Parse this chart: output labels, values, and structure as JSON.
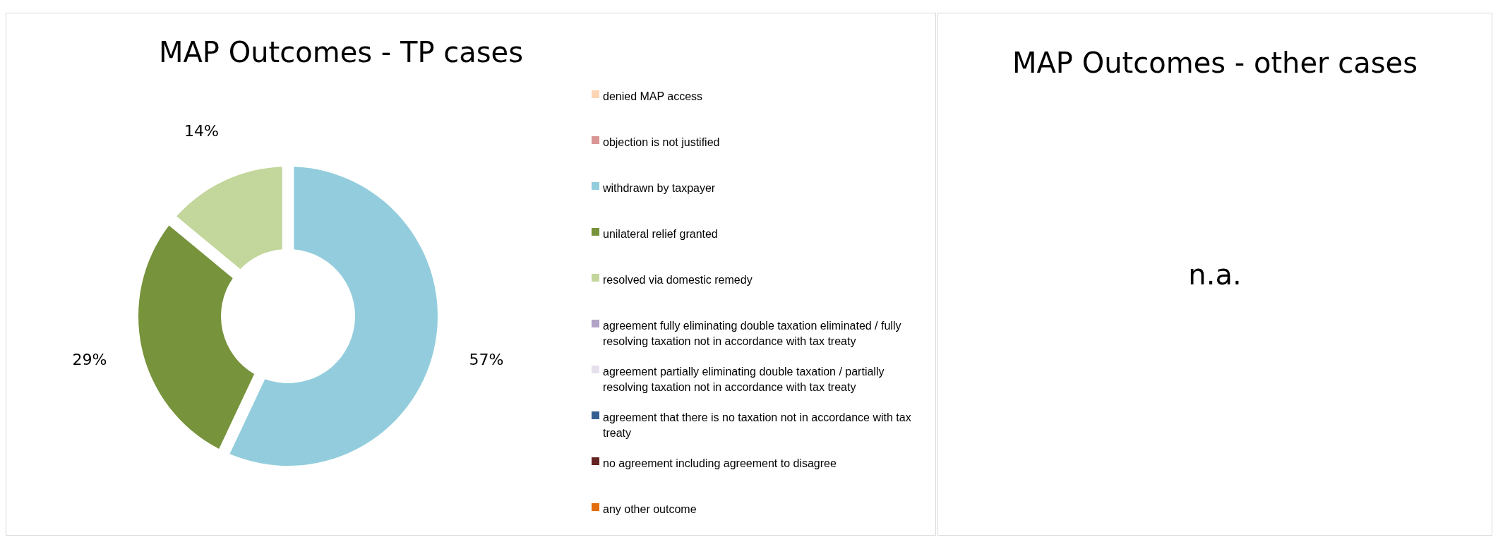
{
  "chart_data": [
    {
      "type": "donut",
      "title": "MAP Outcomes - TP cases",
      "legend": "right",
      "categories": [
        "denied MAP access",
        "objection is not justified",
        "withdrawn by taxpayer",
        "unilateral relief granted",
        "resolved via domestic remedy",
        "agreement fully eliminating double taxation eliminated / fully resolving taxation not in accordance with tax treaty",
        "agreement partially eliminating double taxation / partially resolving taxation not in accordance with tax treaty",
        "agreement that there is no taxation not in accordance with tax treaty",
        "no agreement including agreement to disagree",
        "any other outcome"
      ],
      "values": [
        0,
        0,
        57,
        29,
        14,
        0,
        0,
        0,
        0,
        0
      ],
      "value_labels": [
        null,
        null,
        "57%",
        "29%",
        "14%",
        null,
        null,
        null,
        null,
        null
      ],
      "colors": [
        "#fcd5b5",
        "#d99694",
        "#93cddd",
        "#77933c",
        "#c3d69b",
        "#b3a2c7",
        "#e6e0ec",
        "#376092",
        "#632423",
        "#e46c0a"
      ]
    },
    {
      "type": "other",
      "title": "MAP Outcomes - other cases",
      "annotations": [
        "n.a."
      ]
    }
  ]
}
